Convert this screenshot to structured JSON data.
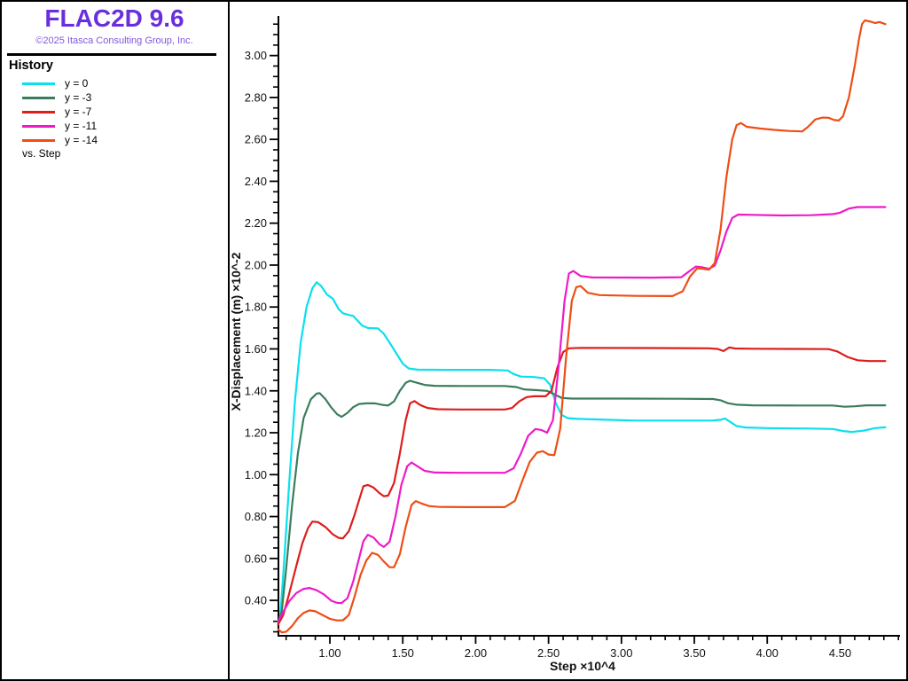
{
  "sidebar": {
    "title": "FLAC2D 9.6",
    "title_color": "#6a2fdd",
    "copyright": "©2025 Itasca Consulting Group, Inc.",
    "copyright_color": "#7e57e0",
    "section_title": "History",
    "vs_label": "vs. Step"
  },
  "legend": {
    "items": [
      {
        "label": "y = 0",
        "color": "#0ae0ee"
      },
      {
        "label": "y = -3",
        "color": "#3a7d5c"
      },
      {
        "label": "y = -7",
        "color": "#dc1e1e"
      },
      {
        "label": "y = -11",
        "color": "#ee1ac8"
      },
      {
        "label": "y = -14",
        "color": "#ee4e16"
      }
    ]
  },
  "chart_data": {
    "type": "line",
    "title": "History",
    "xlabel": "Step ×10^4",
    "ylabel": "X-Displacement (m) ×10^-2",
    "xlim": [
      0.641,
      4.917
    ],
    "ylim": [
      0.231,
      3.244
    ],
    "x_major_ticks": [
      1.0,
      1.5,
      2.0,
      2.5,
      3.0,
      3.5,
      4.0,
      4.5
    ],
    "x_minor_step": 0.1,
    "x_minor_range": [
      0.7,
      4.9
    ],
    "y_major_ticks": [
      0.4,
      0.6,
      0.8,
      1.0,
      1.2,
      1.4,
      1.6,
      1.8,
      2.0,
      2.2,
      2.4,
      2.6,
      2.8,
      3.0
    ],
    "y_minor_step": 0.05,
    "y_minor_range": [
      0.25,
      3.15
    ],
    "grid": false,
    "legend_position": "left-sidebar",
    "axis_color": "#000000",
    "series": [
      {
        "name": "y = 0",
        "color": "#0ae0ee",
        "points": [
          [
            0.645,
            0.29
          ],
          [
            0.66,
            0.33
          ],
          [
            0.68,
            0.52
          ],
          [
            0.72,
            0.95
          ],
          [
            0.76,
            1.35
          ],
          [
            0.8,
            1.63
          ],
          [
            0.84,
            1.8
          ],
          [
            0.88,
            1.89
          ],
          [
            0.91,
            1.918
          ],
          [
            0.94,
            1.9
          ],
          [
            0.98,
            1.86
          ],
          [
            1.02,
            1.84
          ],
          [
            1.06,
            1.79
          ],
          [
            1.09,
            1.77
          ],
          [
            1.13,
            1.762
          ],
          [
            1.16,
            1.758
          ],
          [
            1.19,
            1.735
          ],
          [
            1.22,
            1.712
          ],
          [
            1.26,
            1.7
          ],
          [
            1.33,
            1.698
          ],
          [
            1.37,
            1.672
          ],
          [
            1.41,
            1.63
          ],
          [
            1.45,
            1.585
          ],
          [
            1.5,
            1.53
          ],
          [
            1.54,
            1.507
          ],
          [
            1.6,
            1.501
          ],
          [
            1.8,
            1.5
          ],
          [
            2.1,
            1.5
          ],
          [
            2.22,
            1.497
          ],
          [
            2.26,
            1.48
          ],
          [
            2.31,
            1.468
          ],
          [
            2.4,
            1.466
          ],
          [
            2.47,
            1.46
          ],
          [
            2.51,
            1.43
          ],
          [
            2.55,
            1.34
          ],
          [
            2.59,
            1.285
          ],
          [
            2.63,
            1.27
          ],
          [
            2.7,
            1.266
          ],
          [
            2.9,
            1.262
          ],
          [
            3.1,
            1.258
          ],
          [
            3.4,
            1.258
          ],
          [
            3.62,
            1.258
          ],
          [
            3.68,
            1.262
          ],
          [
            3.71,
            1.268
          ],
          [
            3.75,
            1.25
          ],
          [
            3.79,
            1.232
          ],
          [
            3.85,
            1.225
          ],
          [
            4.0,
            1.222
          ],
          [
            4.3,
            1.22
          ],
          [
            4.45,
            1.218
          ],
          [
            4.52,
            1.208
          ],
          [
            4.58,
            1.204
          ],
          [
            4.66,
            1.21
          ],
          [
            4.74,
            1.222
          ],
          [
            4.81,
            1.226
          ]
        ]
      },
      {
        "name": "y = -3",
        "color": "#3a7d5c",
        "points": [
          [
            0.645,
            0.285
          ],
          [
            0.67,
            0.35
          ],
          [
            0.7,
            0.55
          ],
          [
            0.74,
            0.85
          ],
          [
            0.78,
            1.1
          ],
          [
            0.82,
            1.27
          ],
          [
            0.87,
            1.36
          ],
          [
            0.91,
            1.387
          ],
          [
            0.93,
            1.389
          ],
          [
            0.97,
            1.36
          ],
          [
            1.01,
            1.32
          ],
          [
            1.05,
            1.288
          ],
          [
            1.08,
            1.276
          ],
          [
            1.12,
            1.295
          ],
          [
            1.16,
            1.322
          ],
          [
            1.2,
            1.337
          ],
          [
            1.25,
            1.34
          ],
          [
            1.31,
            1.34
          ],
          [
            1.36,
            1.333
          ],
          [
            1.4,
            1.33
          ],
          [
            1.44,
            1.35
          ],
          [
            1.48,
            1.4
          ],
          [
            1.52,
            1.438
          ],
          [
            1.55,
            1.448
          ],
          [
            1.59,
            1.44
          ],
          [
            1.65,
            1.428
          ],
          [
            1.72,
            1.424
          ],
          [
            1.9,
            1.423
          ],
          [
            2.2,
            1.423
          ],
          [
            2.28,
            1.418
          ],
          [
            2.33,
            1.407
          ],
          [
            2.42,
            1.403
          ],
          [
            2.49,
            1.4
          ],
          [
            2.54,
            1.383
          ],
          [
            2.59,
            1.366
          ],
          [
            2.66,
            1.363
          ],
          [
            3.0,
            1.363
          ],
          [
            3.4,
            1.362
          ],
          [
            3.63,
            1.361
          ],
          [
            3.68,
            1.355
          ],
          [
            3.73,
            1.341
          ],
          [
            3.79,
            1.334
          ],
          [
            3.9,
            1.331
          ],
          [
            4.2,
            1.33
          ],
          [
            4.45,
            1.33
          ],
          [
            4.53,
            1.324
          ],
          [
            4.6,
            1.326
          ],
          [
            4.68,
            1.331
          ],
          [
            4.81,
            1.331
          ]
        ]
      },
      {
        "name": "y = -7",
        "color": "#dc1e1e",
        "points": [
          [
            0.645,
            0.285
          ],
          [
            0.68,
            0.33
          ],
          [
            0.72,
            0.43
          ],
          [
            0.77,
            0.565
          ],
          [
            0.81,
            0.67
          ],
          [
            0.85,
            0.745
          ],
          [
            0.88,
            0.776
          ],
          [
            0.92,
            0.773
          ],
          [
            0.97,
            0.75
          ],
          [
            1.02,
            0.715
          ],
          [
            1.06,
            0.698
          ],
          [
            1.09,
            0.696
          ],
          [
            1.13,
            0.73
          ],
          [
            1.17,
            0.81
          ],
          [
            1.21,
            0.9
          ],
          [
            1.23,
            0.945
          ],
          [
            1.26,
            0.951
          ],
          [
            1.3,
            0.938
          ],
          [
            1.34,
            0.912
          ],
          [
            1.37,
            0.897
          ],
          [
            1.4,
            0.9
          ],
          [
            1.44,
            0.96
          ],
          [
            1.48,
            1.1
          ],
          [
            1.52,
            1.26
          ],
          [
            1.55,
            1.34
          ],
          [
            1.58,
            1.351
          ],
          [
            1.62,
            1.332
          ],
          [
            1.67,
            1.318
          ],
          [
            1.74,
            1.312
          ],
          [
            1.9,
            1.311
          ],
          [
            2.2,
            1.311
          ],
          [
            2.25,
            1.318
          ],
          [
            2.3,
            1.35
          ],
          [
            2.35,
            1.37
          ],
          [
            2.4,
            1.374
          ],
          [
            2.48,
            1.374
          ],
          [
            2.52,
            1.4
          ],
          [
            2.56,
            1.51
          ],
          [
            2.6,
            1.585
          ],
          [
            2.64,
            1.603
          ],
          [
            2.72,
            1.605
          ],
          [
            3.2,
            1.604
          ],
          [
            3.6,
            1.603
          ],
          [
            3.66,
            1.6
          ],
          [
            3.7,
            1.59
          ],
          [
            3.74,
            1.607
          ],
          [
            3.78,
            1.602
          ],
          [
            3.9,
            1.601
          ],
          [
            4.2,
            1.6
          ],
          [
            4.42,
            1.599
          ],
          [
            4.48,
            1.588
          ],
          [
            4.55,
            1.562
          ],
          [
            4.62,
            1.546
          ],
          [
            4.7,
            1.542
          ],
          [
            4.81,
            1.542
          ]
        ]
      },
      {
        "name": "y = -11",
        "color": "#ee1ac8",
        "points": [
          [
            0.645,
            0.3
          ],
          [
            0.68,
            0.345
          ],
          [
            0.72,
            0.395
          ],
          [
            0.77,
            0.435
          ],
          [
            0.82,
            0.455
          ],
          [
            0.86,
            0.459
          ],
          [
            0.91,
            0.448
          ],
          [
            0.96,
            0.428
          ],
          [
            1.01,
            0.398
          ],
          [
            1.05,
            0.388
          ],
          [
            1.08,
            0.387
          ],
          [
            1.12,
            0.41
          ],
          [
            1.16,
            0.49
          ],
          [
            1.2,
            0.6
          ],
          [
            1.23,
            0.682
          ],
          [
            1.26,
            0.713
          ],
          [
            1.3,
            0.7
          ],
          [
            1.34,
            0.668
          ],
          [
            1.37,
            0.655
          ],
          [
            1.41,
            0.68
          ],
          [
            1.45,
            0.8
          ],
          [
            1.49,
            0.95
          ],
          [
            1.53,
            1.04
          ],
          [
            1.56,
            1.058
          ],
          [
            1.6,
            1.04
          ],
          [
            1.65,
            1.018
          ],
          [
            1.72,
            1.01
          ],
          [
            1.9,
            1.009
          ],
          [
            2.2,
            1.009
          ],
          [
            2.26,
            1.03
          ],
          [
            2.31,
            1.1
          ],
          [
            2.36,
            1.185
          ],
          [
            2.41,
            1.218
          ],
          [
            2.45,
            1.213
          ],
          [
            2.49,
            1.2
          ],
          [
            2.53,
            1.26
          ],
          [
            2.57,
            1.52
          ],
          [
            2.61,
            1.83
          ],
          [
            2.64,
            1.96
          ],
          [
            2.67,
            1.972
          ],
          [
            2.72,
            1.948
          ],
          [
            2.8,
            1.941
          ],
          [
            3.2,
            1.94
          ],
          [
            3.41,
            1.942
          ],
          [
            3.46,
            1.968
          ],
          [
            3.51,
            1.993
          ],
          [
            3.55,
            1.99
          ],
          [
            3.6,
            1.982
          ],
          [
            3.64,
            1.998
          ],
          [
            3.68,
            2.07
          ],
          [
            3.72,
            2.16
          ],
          [
            3.76,
            2.225
          ],
          [
            3.8,
            2.241
          ],
          [
            3.9,
            2.24
          ],
          [
            4.1,
            2.237
          ],
          [
            4.3,
            2.238
          ],
          [
            4.45,
            2.243
          ],
          [
            4.5,
            2.25
          ],
          [
            4.56,
            2.27
          ],
          [
            4.62,
            2.277
          ],
          [
            4.81,
            2.277
          ]
        ]
      },
      {
        "name": "y = -14",
        "color": "#ee4e16",
        "points": [
          [
            0.645,
            0.262
          ],
          [
            0.67,
            0.247
          ],
          [
            0.7,
            0.25
          ],
          [
            0.74,
            0.277
          ],
          [
            0.78,
            0.315
          ],
          [
            0.82,
            0.34
          ],
          [
            0.86,
            0.352
          ],
          [
            0.9,
            0.348
          ],
          [
            0.95,
            0.33
          ],
          [
            1.0,
            0.312
          ],
          [
            1.05,
            0.304
          ],
          [
            1.09,
            0.305
          ],
          [
            1.13,
            0.33
          ],
          [
            1.17,
            0.42
          ],
          [
            1.21,
            0.52
          ],
          [
            1.25,
            0.59
          ],
          [
            1.29,
            0.627
          ],
          [
            1.33,
            0.617
          ],
          [
            1.37,
            0.585
          ],
          [
            1.41,
            0.558
          ],
          [
            1.44,
            0.558
          ],
          [
            1.48,
            0.62
          ],
          [
            1.52,
            0.75
          ],
          [
            1.56,
            0.855
          ],
          [
            1.59,
            0.874
          ],
          [
            1.63,
            0.862
          ],
          [
            1.68,
            0.85
          ],
          [
            1.75,
            0.846
          ],
          [
            1.95,
            0.845
          ],
          [
            2.2,
            0.845
          ],
          [
            2.27,
            0.875
          ],
          [
            2.32,
            0.97
          ],
          [
            2.37,
            1.06
          ],
          [
            2.42,
            1.105
          ],
          [
            2.46,
            1.112
          ],
          [
            2.5,
            1.096
          ],
          [
            2.54,
            1.093
          ],
          [
            2.58,
            1.22
          ],
          [
            2.62,
            1.56
          ],
          [
            2.66,
            1.83
          ],
          [
            2.69,
            1.895
          ],
          [
            2.72,
            1.9
          ],
          [
            2.77,
            1.868
          ],
          [
            2.85,
            1.857
          ],
          [
            3.1,
            1.853
          ],
          [
            3.35,
            1.852
          ],
          [
            3.42,
            1.875
          ],
          [
            3.47,
            1.945
          ],
          [
            3.52,
            1.985
          ],
          [
            3.56,
            1.982
          ],
          [
            3.6,
            1.978
          ],
          [
            3.64,
            2.01
          ],
          [
            3.68,
            2.17
          ],
          [
            3.72,
            2.42
          ],
          [
            3.76,
            2.6
          ],
          [
            3.79,
            2.668
          ],
          [
            3.82,
            2.678
          ],
          [
            3.86,
            2.66
          ],
          [
            3.95,
            2.652
          ],
          [
            4.05,
            2.645
          ],
          [
            4.15,
            2.64
          ],
          [
            4.24,
            2.638
          ],
          [
            4.28,
            2.66
          ],
          [
            4.33,
            2.695
          ],
          [
            4.38,
            2.704
          ],
          [
            4.42,
            2.703
          ],
          [
            4.46,
            2.692
          ],
          [
            4.49,
            2.69
          ],
          [
            4.52,
            2.71
          ],
          [
            4.56,
            2.8
          ],
          [
            4.6,
            2.95
          ],
          [
            4.63,
            3.08
          ],
          [
            4.65,
            3.15
          ],
          [
            4.67,
            3.168
          ],
          [
            4.71,
            3.162
          ],
          [
            4.74,
            3.155
          ],
          [
            4.77,
            3.16
          ],
          [
            4.81,
            3.15
          ]
        ]
      }
    ]
  }
}
